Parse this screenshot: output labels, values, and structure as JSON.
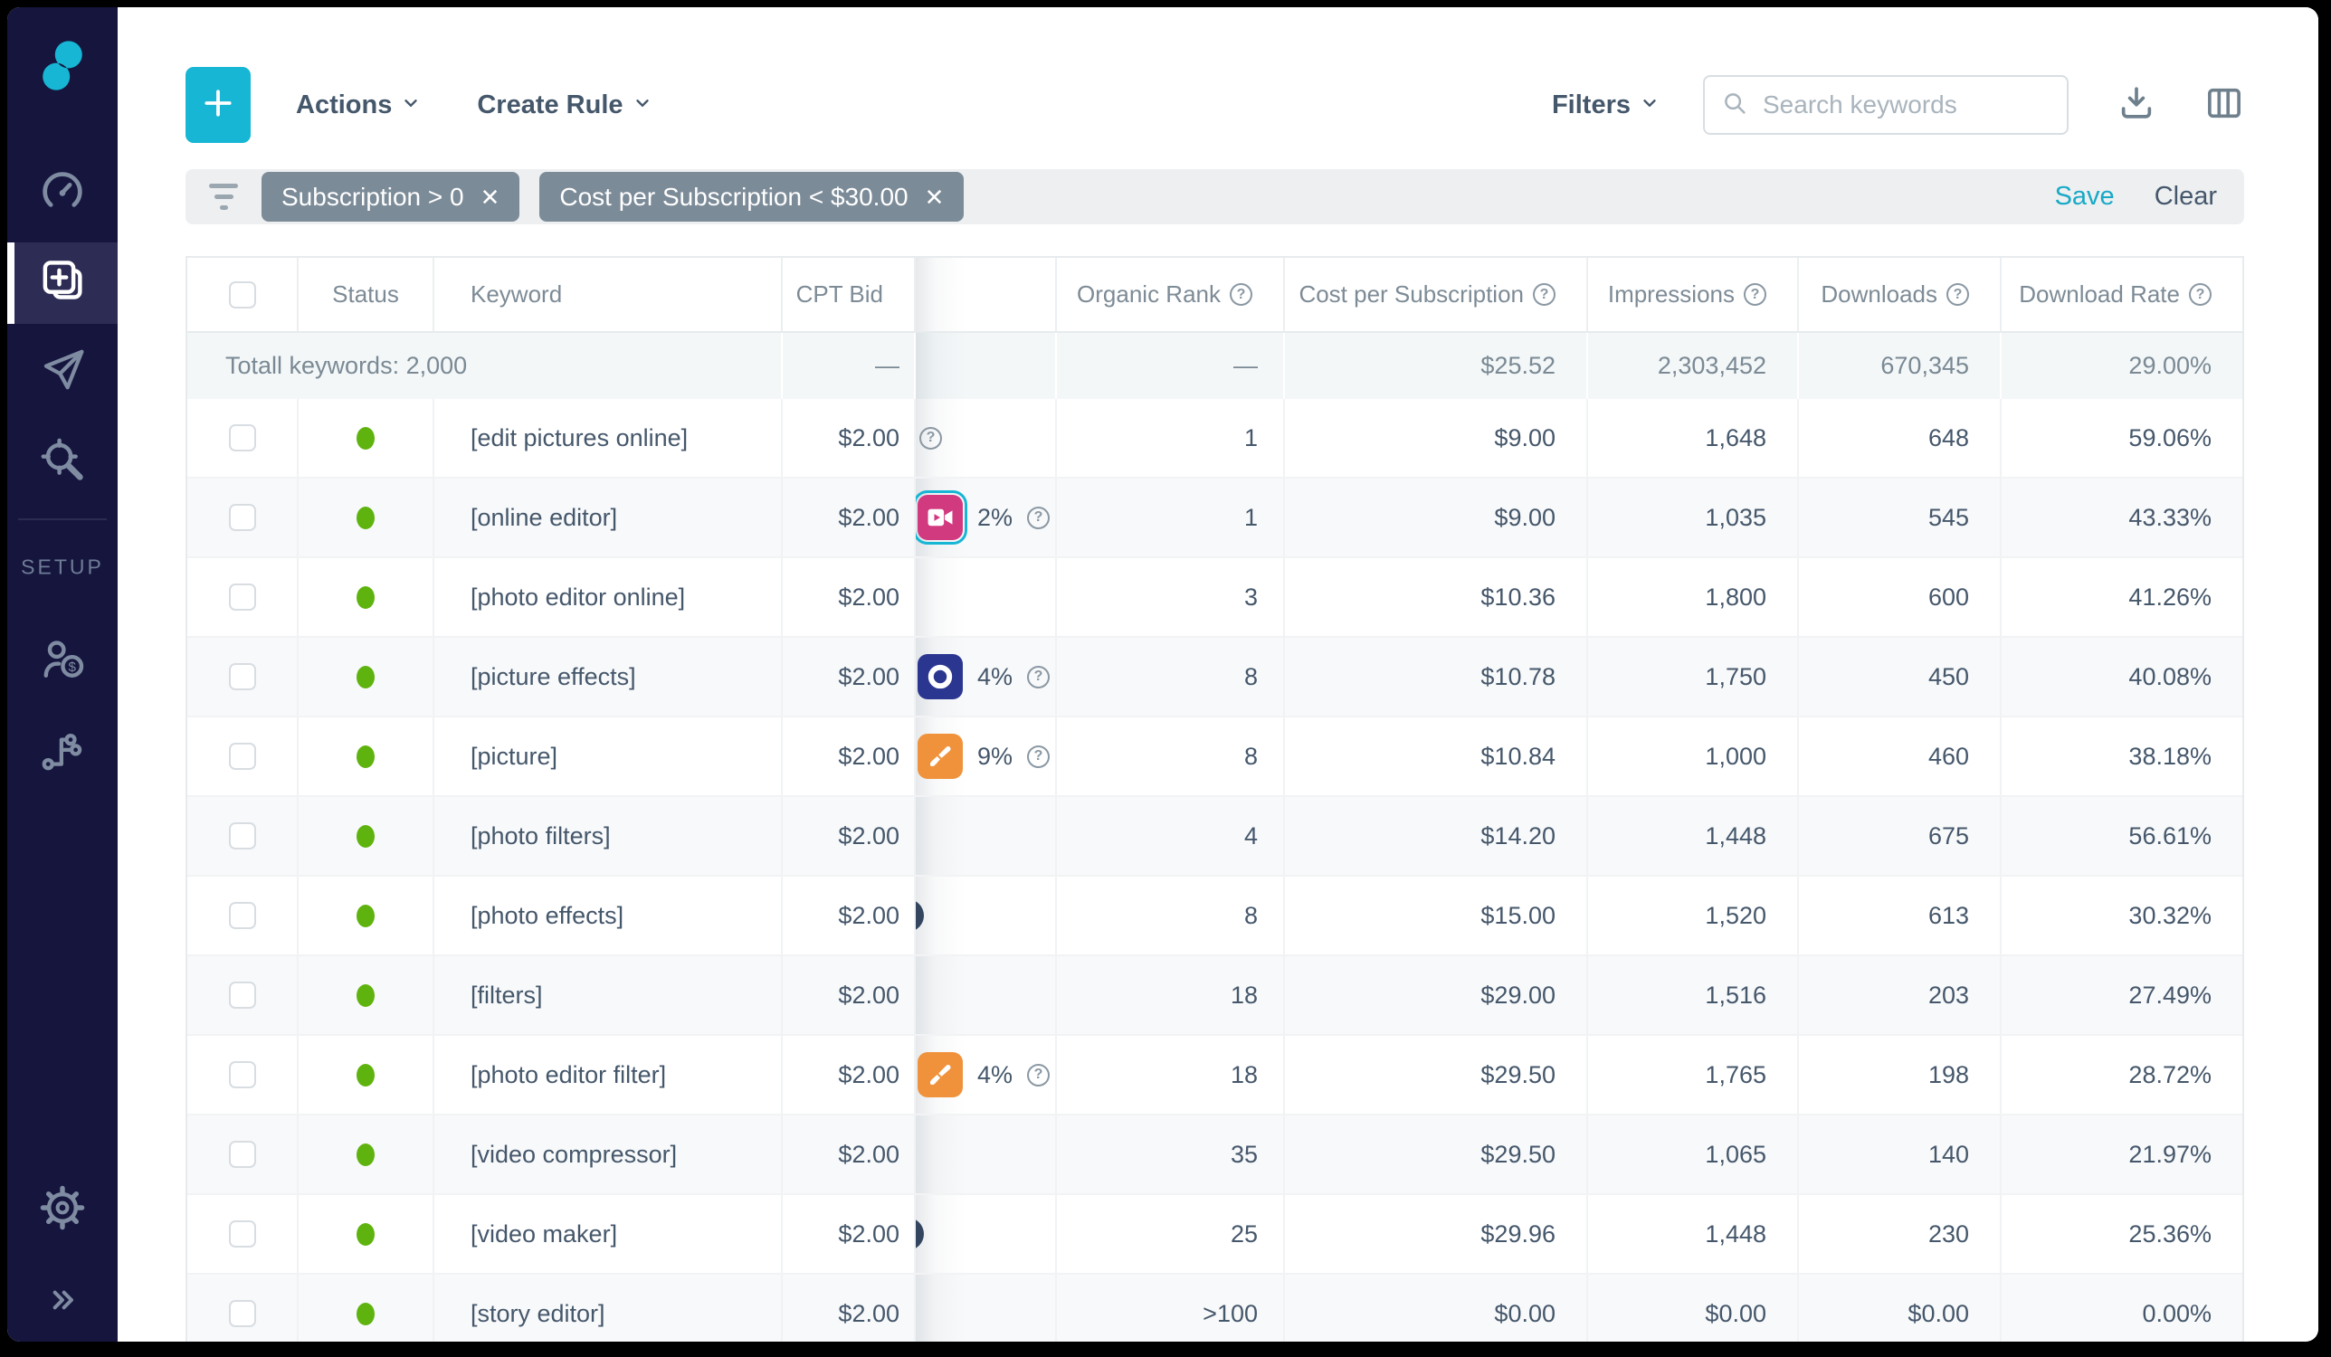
{
  "sidebar": {
    "setup_label": "SETUP",
    "items": [
      {
        "name": "logo"
      },
      {
        "name": "dashboard"
      },
      {
        "name": "keywords",
        "active": true
      },
      {
        "name": "campaigns"
      },
      {
        "name": "keyword-discovery"
      },
      {
        "name": "accounts-billing"
      },
      {
        "name": "integrations"
      },
      {
        "name": "settings"
      },
      {
        "name": "collapse-sidebar"
      }
    ]
  },
  "toolbar": {
    "add_label": "+",
    "actions_label": "Actions",
    "create_rule_label": "Create Rule",
    "filters_label": "Filters",
    "search_placeholder": "Search keywords"
  },
  "filter_bar": {
    "chips": [
      {
        "label": "Subscription > 0",
        "remove": "✕"
      },
      {
        "label": "Cost per Subscription < $30.00",
        "remove": "✕"
      }
    ],
    "save_label": "Save",
    "clear_label": "Clear"
  },
  "table": {
    "columns": [
      {
        "label": "Status"
      },
      {
        "label": "Keyword"
      },
      {
        "label": "CPT Bid"
      },
      {
        "label": "Organic Rank",
        "help": "?"
      },
      {
        "label": "Cost per Subscription",
        "help": "?"
      },
      {
        "label": "Impressions",
        "help": "?"
      },
      {
        "label": "Downloads",
        "help": "?"
      },
      {
        "label": "Download Rate",
        "help": "?"
      }
    ],
    "totals": {
      "label": "Totall keywords: 2,000",
      "cpt_bid": "—",
      "organic_rank": "—",
      "cost_per_subscription": "$25.52",
      "impressions": "2,303,452",
      "downloads": "670,345",
      "download_rate": "29.00%"
    },
    "rows": [
      {
        "status": "enabled",
        "keyword": "[edit pictures online]",
        "cpt_bid": "$2.00",
        "app_slot": {
          "variant": "help-only",
          "help": "?"
        },
        "organic_rank": "1",
        "cost_per_subscription": "$9.00",
        "impressions": "1,648",
        "downloads": "648",
        "download_rate": "59.06%"
      },
      {
        "status": "enabled",
        "keyword": "[online editor]",
        "cpt_bid": "$2.00",
        "app_slot": {
          "variant": "icon",
          "icon": "video-camera-app-icon",
          "color": "#d23a80",
          "percent": "2%",
          "help": "?",
          "selected": true
        },
        "organic_rank": "1",
        "cost_per_subscription": "$9.00",
        "impressions": "1,035",
        "downloads": "545",
        "download_rate": "43.33%"
      },
      {
        "status": "enabled",
        "keyword": "[photo editor online]",
        "cpt_bid": "$2.00",
        "app_slot": {
          "variant": "empty"
        },
        "organic_rank": "3",
        "cost_per_subscription": "$10.36",
        "impressions": "1,800",
        "downloads": "600",
        "download_rate": "41.26%"
      },
      {
        "status": "enabled",
        "keyword": "[picture effects]",
        "cpt_bid": "$2.00",
        "app_slot": {
          "variant": "icon",
          "icon": "camera-lens-app-icon",
          "color": "#2b3690",
          "percent": "4%",
          "help": "?"
        },
        "organic_rank": "8",
        "cost_per_subscription": "$10.78",
        "impressions": "1,750",
        "downloads": "450",
        "download_rate": "40.08%"
      },
      {
        "status": "enabled",
        "keyword": "[picture]",
        "cpt_bid": "$2.00",
        "app_slot": {
          "variant": "icon",
          "icon": "paintbrush-app-icon",
          "color": "#f0923b",
          "percent": "9%",
          "help": "?"
        },
        "organic_rank": "8",
        "cost_per_subscription": "$10.84",
        "impressions": "1,000",
        "downloads": "460",
        "download_rate": "38.18%"
      },
      {
        "status": "enabled",
        "keyword": "[photo filters]",
        "cpt_bid": "$2.00",
        "app_slot": {
          "variant": "empty"
        },
        "organic_rank": "4",
        "cost_per_subscription": "$14.20",
        "impressions": "1,448",
        "downloads": "675",
        "download_rate": "56.61%"
      },
      {
        "status": "enabled",
        "keyword": "[photo effects]",
        "cpt_bid": "$2.00",
        "app_slot": {
          "variant": "partial"
        },
        "organic_rank": "8",
        "cost_per_subscription": "$15.00",
        "impressions": "1,520",
        "downloads": "613",
        "download_rate": "30.32%"
      },
      {
        "status": "enabled",
        "keyword": "[filters]",
        "cpt_bid": "$2.00",
        "app_slot": {
          "variant": "empty"
        },
        "organic_rank": "18",
        "cost_per_subscription": "$29.00",
        "impressions": "1,516",
        "downloads": "203",
        "download_rate": "27.49%"
      },
      {
        "status": "enabled",
        "keyword": "[photo editor filter]",
        "cpt_bid": "$2.00",
        "app_slot": {
          "variant": "icon",
          "icon": "paintbrush-app-icon",
          "color": "#f0923b",
          "percent": "4%",
          "help": "?"
        },
        "organic_rank": "18",
        "cost_per_subscription": "$29.50",
        "impressions": "1,765",
        "downloads": "198",
        "download_rate": "28.72%"
      },
      {
        "status": "enabled",
        "keyword": "[video compressor]",
        "cpt_bid": "$2.00",
        "app_slot": {
          "variant": "empty"
        },
        "organic_rank": "35",
        "cost_per_subscription": "$29.50",
        "impressions": "1,065",
        "downloads": "140",
        "download_rate": "21.97%"
      },
      {
        "status": "enabled",
        "keyword": "[video maker]",
        "cpt_bid": "$2.00",
        "app_slot": {
          "variant": "partial"
        },
        "organic_rank": "25",
        "cost_per_subscription": "$29.96",
        "impressions": "1,448",
        "downloads": "230",
        "download_rate": "25.36%"
      },
      {
        "status": "enabled",
        "keyword": "[story editor]",
        "cpt_bid": "$2.00",
        "app_slot": {
          "variant": "empty"
        },
        "organic_rank": ">100",
        "cost_per_subscription": "$0.00",
        "impressions": "$0.00",
        "downloads": "$0.00",
        "download_rate": "0.00%"
      }
    ]
  },
  "colors": {
    "accent_cyan": "#17b6d4",
    "sidebar_navy": "#15153e",
    "status_enabled_green": "#5fb30e",
    "chip_gray": "#7c8b98",
    "text_slate": "#45576b",
    "text_secondary": "#7d8b96",
    "app_icon_pink": "#d23a80",
    "app_icon_indigo": "#2b3690",
    "app_icon_orange": "#f0923b"
  },
  "icons": {
    "plus-icon": "+",
    "search-icon": "magnifier",
    "download-icon": "tray-arrow-down",
    "columns-icon": "column-layout",
    "filter-funnel-icon": "three-lines",
    "chevron-down-icon": "⌄",
    "help-icon": "?",
    "remove-icon": "✕",
    "collapse-icon": "»"
  }
}
